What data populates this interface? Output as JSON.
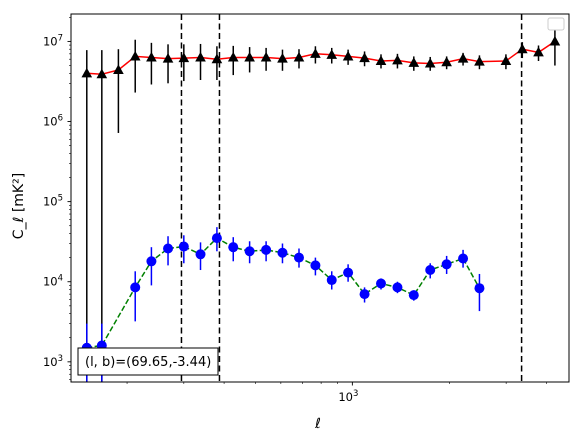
{
  "chart_data": {
    "type": "scatter",
    "xlabel": "ℓ",
    "ylabel": "C_ℓ  [mK²]",
    "xscale": "log",
    "yscale": "log",
    "xlim": [
      134,
      4700
    ],
    "ylim": [
      560,
      22000000
    ],
    "x_ticks": [
      {
        "value": 1000,
        "label": "10",
        "exp": "3"
      }
    ],
    "y_ticks": [
      {
        "value": 1000,
        "label": "10",
        "exp": "3"
      },
      {
        "value": 10000,
        "label": "10",
        "exp": "4"
      },
      {
        "value": 100000,
        "label": "10",
        "exp": "5"
      },
      {
        "value": 1000000,
        "label": "10",
        "exp": "6"
      },
      {
        "value": 10000000,
        "label": "10",
        "exp": "7"
      }
    ],
    "annotation": "(l, b)=(69.65,-3.44)",
    "legend": "empty box, top-right",
    "vlines": [
      295,
      387,
      3350
    ],
    "series": [
      {
        "marker": "triangle",
        "color": "#000000",
        "curve_color": "#ff0000",
        "curve_style": "solid",
        "points": [
          {
            "x": 150,
            "y": 4000000,
            "lo": 560,
            "hi": 7800000
          },
          {
            "x": 167,
            "y": 3900000,
            "lo": 560,
            "hi": 7800000
          },
          {
            "x": 188,
            "y": 4400000,
            "lo": 720000,
            "hi": 8000000
          },
          {
            "x": 212,
            "y": 6500000,
            "lo": 2300000,
            "hi": 10500000
          },
          {
            "x": 238,
            "y": 6300000,
            "lo": 2900000,
            "hi": 9600000
          },
          {
            "x": 268,
            "y": 6100000,
            "lo": 3000000,
            "hi": 9200000
          },
          {
            "x": 300,
            "y": 6200000,
            "lo": 3200000,
            "hi": 9200000
          },
          {
            "x": 338,
            "y": 6300000,
            "lo": 3300000,
            "hi": 9300000
          },
          {
            "x": 380,
            "y": 6000000,
            "lo": 3300000,
            "hi": 8700000
          },
          {
            "x": 427,
            "y": 6300000,
            "lo": 3800000,
            "hi": 8800000
          },
          {
            "x": 480,
            "y": 6300000,
            "lo": 4100000,
            "hi": 8500000
          },
          {
            "x": 540,
            "y": 6300000,
            "lo": 4300000,
            "hi": 8300000
          },
          {
            "x": 607,
            "y": 6100000,
            "lo": 4300000,
            "hi": 7900000
          },
          {
            "x": 683,
            "y": 6300000,
            "lo": 4600000,
            "hi": 8000000
          },
          {
            "x": 768,
            "y": 7000000,
            "lo": 5300000,
            "hi": 8700000
          },
          {
            "x": 863,
            "y": 6800000,
            "lo": 5300000,
            "hi": 8300000
          },
          {
            "x": 970,
            "y": 6500000,
            "lo": 5100000,
            "hi": 7900000
          },
          {
            "x": 1091,
            "y": 6200000,
            "lo": 4900000,
            "hi": 7500000
          },
          {
            "x": 1227,
            "y": 5700000,
            "lo": 4600000,
            "hi": 6900000
          },
          {
            "x": 1380,
            "y": 5800000,
            "lo": 4600000,
            "hi": 7000000
          },
          {
            "x": 1551,
            "y": 5400000,
            "lo": 4300000,
            "hi": 6500000
          },
          {
            "x": 1744,
            "y": 5300000,
            "lo": 4300000,
            "hi": 6400000
          },
          {
            "x": 1961,
            "y": 5500000,
            "lo": 4500000,
            "hi": 6500000
          },
          {
            "x": 2205,
            "y": 6100000,
            "lo": 5000000,
            "hi": 7200000
          },
          {
            "x": 2479,
            "y": 5600000,
            "lo": 4500000,
            "hi": 6700000
          },
          {
            "x": 2995,
            "y": 5700000,
            "lo": 4500000,
            "hi": 6900000
          },
          {
            "x": 3367,
            "y": 8000000,
            "lo": 6200000,
            "hi": 9800000
          },
          {
            "x": 3780,
            "y": 7300000,
            "lo": 5700000,
            "hi": 8900000
          },
          {
            "x": 4250,
            "y": 10000000,
            "lo": 5000000,
            "hi": 14500000
          }
        ]
      },
      {
        "marker": "circle",
        "color": "#0000ff",
        "curve_color": "#008000",
        "curve_style": "dashed",
        "points": [
          {
            "x": 150,
            "y": 1500,
            "lo": 560,
            "hi": 3000
          },
          {
            "x": 167,
            "y": 1600,
            "lo": 560,
            "hi": 3000
          },
          {
            "x": 212,
            "y": 8500,
            "lo": 3200,
            "hi": 13500
          },
          {
            "x": 238,
            "y": 18000,
            "lo": 9000,
            "hi": 27000
          },
          {
            "x": 268,
            "y": 26000,
            "lo": 16000,
            "hi": 37000
          },
          {
            "x": 300,
            "y": 27500,
            "lo": 17000,
            "hi": 38000
          },
          {
            "x": 338,
            "y": 22000,
            "lo": 14000,
            "hi": 31000
          },
          {
            "x": 380,
            "y": 35000,
            "lo": 24000,
            "hi": 48000
          },
          {
            "x": 427,
            "y": 27000,
            "lo": 18000,
            "hi": 36000
          },
          {
            "x": 480,
            "y": 24000,
            "lo": 17000,
            "hi": 32000
          },
          {
            "x": 540,
            "y": 25000,
            "lo": 18000,
            "hi": 32000
          },
          {
            "x": 607,
            "y": 23000,
            "lo": 17000,
            "hi": 30000
          },
          {
            "x": 683,
            "y": 20000,
            "lo": 15000,
            "hi": 26000
          },
          {
            "x": 768,
            "y": 16000,
            "lo": 12000,
            "hi": 20000
          },
          {
            "x": 863,
            "y": 10500,
            "lo": 8000,
            "hi": 13500
          },
          {
            "x": 970,
            "y": 13000,
            "lo": 10000,
            "hi": 16500
          },
          {
            "x": 1091,
            "y": 7000,
            "lo": 5500,
            "hi": 8500
          },
          {
            "x": 1227,
            "y": 9500,
            "lo": 8000,
            "hi": 11000
          },
          {
            "x": 1380,
            "y": 8500,
            "lo": 7200,
            "hi": 10000
          },
          {
            "x": 1551,
            "y": 6800,
            "lo": 5800,
            "hi": 7800
          },
          {
            "x": 1744,
            "y": 14000,
            "lo": 11000,
            "hi": 17000
          },
          {
            "x": 1961,
            "y": 16500,
            "lo": 12500,
            "hi": 21000
          },
          {
            "x": 2205,
            "y": 19500,
            "lo": 15000,
            "hi": 25000
          },
          {
            "x": 2479,
            "y": 8300,
            "lo": 4300,
            "hi": 12500
          }
        ]
      }
    ]
  }
}
